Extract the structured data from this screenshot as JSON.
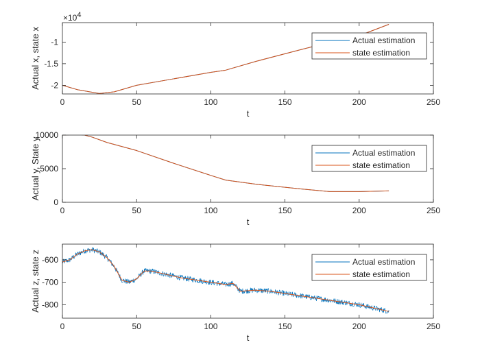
{
  "chart_data": [
    {
      "type": "line",
      "xlabel": "t",
      "ylabel": "Actual x, state x",
      "xlim": [
        0,
        250
      ],
      "ylim": [
        -22000,
        -5500
      ],
      "xticks": [
        0,
        50,
        100,
        150,
        200,
        250
      ],
      "xtick_labels": [
        "0",
        "50",
        "100",
        "150",
        "200",
        "250"
      ],
      "yticks": [
        -20000,
        -15000,
        -10000
      ],
      "ytick_labels": [
        "-2",
        "-1.5",
        "-1"
      ],
      "exponent_label": "×10",
      "exponent_power": "4",
      "grid": false,
      "legend_position": "top-right",
      "series": [
        {
          "name": "Actual estimation",
          "color": "#0072BD",
          "x": [
            0,
            10,
            25,
            35,
            50,
            75,
            100,
            110,
            130,
            160,
            190,
            200,
            210,
            220
          ],
          "y": [
            -20000,
            -21000,
            -21900,
            -21500,
            -20000,
            -18500,
            -17000,
            -16500,
            -14500,
            -11800,
            -9200,
            -8500,
            -7200,
            -5900
          ]
        },
        {
          "name": "state estimation",
          "color": "#D95319",
          "x": [
            0,
            10,
            25,
            35,
            50,
            75,
            100,
            110,
            130,
            160,
            190,
            200,
            210,
            220
          ],
          "y": [
            -20000,
            -21000,
            -21900,
            -21500,
            -20000,
            -18500,
            -17000,
            -16500,
            -14500,
            -11800,
            -9200,
            -8500,
            -7200,
            -5900
          ]
        }
      ]
    },
    {
      "type": "line",
      "xlabel": "t",
      "ylabel": "Actual y, State y",
      "xlim": [
        0,
        250
      ],
      "ylim": [
        0,
        10000
      ],
      "xticks": [
        0,
        50,
        100,
        150,
        200,
        250
      ],
      "xtick_labels": [
        "0",
        "50",
        "100",
        "150",
        "200",
        "250"
      ],
      "yticks": [
        0,
        5000,
        10000
      ],
      "ytick_labels": [
        "0",
        "5000",
        "10000"
      ],
      "grid": false,
      "legend_position": "top-right",
      "series": [
        {
          "name": "Actual estimation",
          "color": "#0072BD",
          "x": [
            0,
            10,
            15,
            20,
            30,
            50,
            75,
            100,
            110,
            130,
            160,
            180,
            200,
            220
          ],
          "y": [
            10000,
            10100,
            10000,
            9700,
            8900,
            7700,
            5800,
            4000,
            3300,
            2700,
            2000,
            1600,
            1600,
            1700
          ]
        },
        {
          "name": "state estimation",
          "color": "#D95319",
          "x": [
            0,
            10,
            15,
            20,
            30,
            50,
            75,
            100,
            110,
            130,
            160,
            180,
            200,
            220
          ],
          "y": [
            10000,
            10100,
            10000,
            9700,
            8900,
            7700,
            5800,
            4000,
            3300,
            2700,
            2000,
            1600,
            1600,
            1700
          ]
        }
      ]
    },
    {
      "type": "line",
      "xlabel": "t",
      "ylabel": "Actual z, state z",
      "xlim": [
        0,
        250
      ],
      "ylim": [
        -860,
        -530
      ],
      "xticks": [
        0,
        50,
        100,
        150,
        200,
        250
      ],
      "xtick_labels": [
        "0",
        "50",
        "100",
        "150",
        "200",
        "250"
      ],
      "yticks": [
        -800,
        -700,
        -600
      ],
      "ytick_labels": [
        "-800",
        "-700",
        "-600"
      ],
      "grid": false,
      "legend_position": "top-right",
      "noise_amplitude_series1": 12,
      "series": [
        {
          "name": "Actual estimation",
          "color": "#0072BD",
          "x": [
            0,
            5,
            10,
            15,
            20,
            25,
            30,
            35,
            40,
            45,
            50,
            55,
            60,
            70,
            80,
            90,
            100,
            110,
            115,
            120,
            130,
            140,
            150,
            160,
            170,
            180,
            190,
            200,
            210,
            220
          ],
          "y": [
            -610,
            -600,
            -575,
            -560,
            -555,
            -565,
            -590,
            -630,
            -690,
            -700,
            -685,
            -650,
            -650,
            -665,
            -680,
            -690,
            -700,
            -710,
            -705,
            -740,
            -735,
            -740,
            -750,
            -760,
            -770,
            -780,
            -790,
            -800,
            -815,
            -830
          ]
        },
        {
          "name": "state estimation",
          "color": "#D95319",
          "x": [
            0,
            5,
            10,
            15,
            20,
            25,
            30,
            35,
            40,
            45,
            50,
            55,
            60,
            70,
            80,
            90,
            100,
            110,
            115,
            120,
            130,
            140,
            150,
            160,
            170,
            180,
            190,
            200,
            210,
            220
          ],
          "y": [
            -610,
            -600,
            -575,
            -560,
            -555,
            -565,
            -590,
            -630,
            -690,
            -700,
            -685,
            -650,
            -650,
            -665,
            -680,
            -690,
            -700,
            -710,
            -705,
            -740,
            -735,
            -740,
            -750,
            -760,
            -770,
            -780,
            -790,
            -800,
            -815,
            -830
          ]
        }
      ]
    }
  ]
}
